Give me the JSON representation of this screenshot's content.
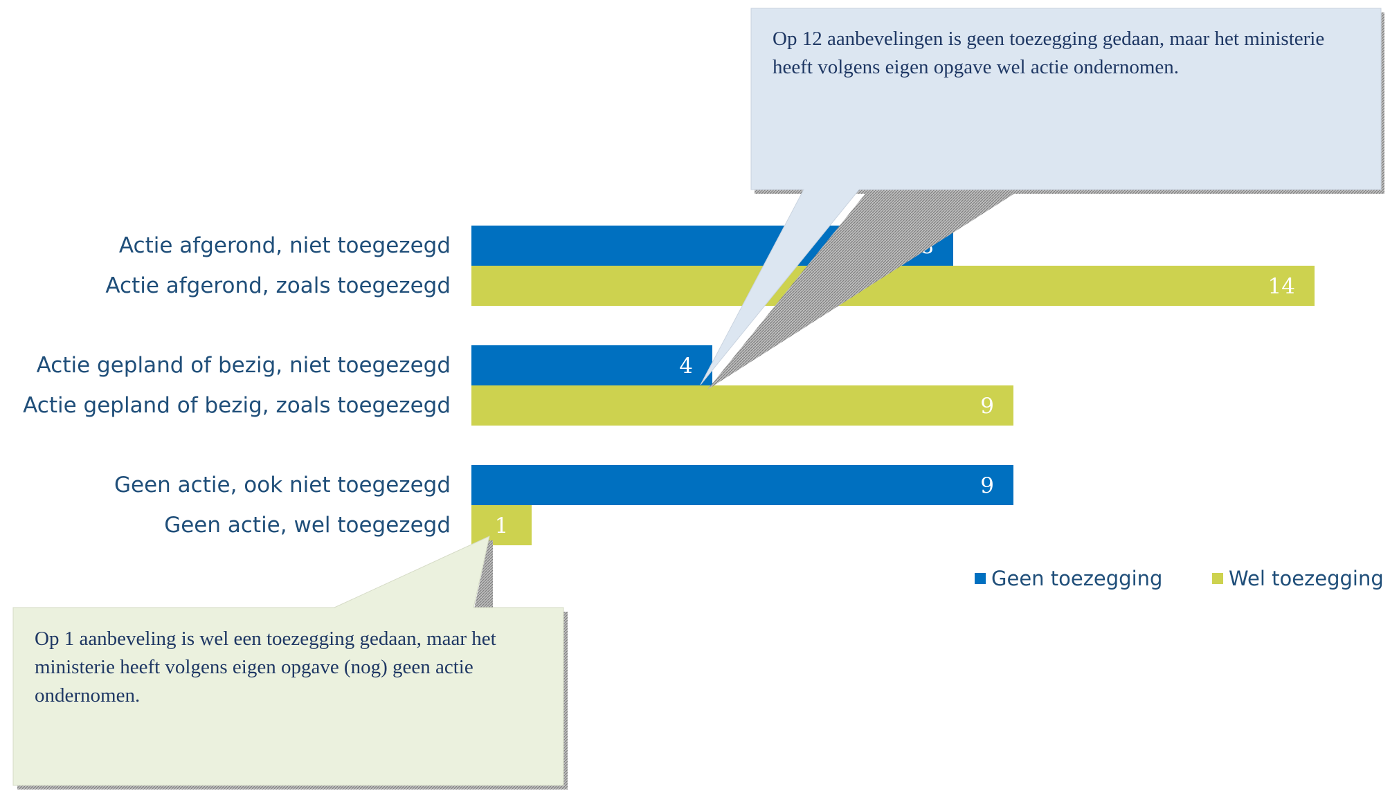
{
  "chart_data": {
    "type": "bar",
    "orientation": "horizontal",
    "categories": [
      "Actie afgerond, niet toegezegd",
      "Actie afgerond, zoals toegezegd",
      "Actie gepland of bezig, niet toegezegd",
      "Actie gepland of bezig, zoals toegezegd",
      "Geen actie, ook niet toegezegd",
      "Geen actie, wel toegezegd"
    ],
    "values": [
      8,
      14,
      4,
      9,
      9,
      1
    ],
    "series_of_bar": [
      0,
      1,
      0,
      1,
      0,
      1
    ],
    "series": [
      {
        "name": "Geen toezegging",
        "color": "#0070c0"
      },
      {
        "name": "Wel toezegging",
        "color": "#cdd24f"
      }
    ],
    "xlim": [
      0,
      14
    ],
    "grid": false,
    "legend": "bottom-right",
    "data_labels": true
  },
  "callouts": [
    {
      "text": "Op 12 aanbevelingen is geen toezegging gedaan, maar het ministerie heeft volgens eigen opgave wel actie ondernomen.",
      "fill": "#dce6f1"
    },
    {
      "text": "Op 1 aanbeveling is wel een toezegging gedaan, maar het ministerie heeft volgens eigen opgave (nog) geen actie ondernomen.",
      "fill": "#ebf1de"
    }
  ]
}
